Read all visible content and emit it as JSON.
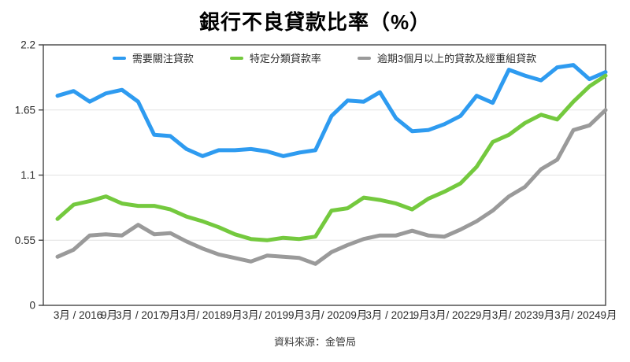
{
  "title": "銀行不良貸款比率（%）",
  "source": "資料來源：金管局",
  "colors": {
    "blue": "#2E9BF0",
    "green": "#74C93E",
    "gray": "#9A9A9A",
    "axis": "#444444",
    "grid": "#E2E2E2",
    "text": "#2B2B2B"
  },
  "chart_data": {
    "type": "line",
    "title": "銀行不良貸款比率（%）",
    "ylim": [
      0,
      2.2
    ],
    "yticks": [
      0,
      0.55,
      1.1,
      1.65,
      2.2
    ],
    "ytick_labels": [
      "0",
      "0.55",
      "1.1",
      "1.65",
      "2.2"
    ],
    "grid": "horizontal-only",
    "legend_position": "top",
    "x_note": "Quarterly data, 35 points (2016 Q1 to 2024 Q3); axis labels shown every 2nd point",
    "x_tick_labels": [
      "3月 / 2016",
      "9月",
      "3月 / 2017",
      "9月",
      "3月/ 2018",
      "9月",
      "3月/ 2019",
      "9月",
      "3月/ 2020",
      "9月",
      "3月 / 2021",
      "9月",
      "3月/ 2022",
      "9月",
      "3月/ 2023",
      "9月",
      "3月/ 2024",
      "9月"
    ],
    "x_points": [
      "2016-03",
      "2016-06",
      "2016-09",
      "2016-12",
      "2017-03",
      "2017-06",
      "2017-09",
      "2017-12",
      "2018-03",
      "2018-06",
      "2018-09",
      "2018-12",
      "2019-03",
      "2019-06",
      "2019-09",
      "2019-12",
      "2020-03",
      "2020-06",
      "2020-09",
      "2020-12",
      "2021-03",
      "2021-06",
      "2021-09",
      "2021-12",
      "2022-03",
      "2022-06",
      "2022-09",
      "2022-12",
      "2023-03",
      "2023-06",
      "2023-09",
      "2023-12",
      "2024-03",
      "2024-06",
      "2024-09"
    ],
    "series": [
      {
        "name": "需要關注貸款",
        "color": "#2E9BF0",
        "values": [
          1.77,
          1.81,
          1.72,
          1.79,
          1.82,
          1.72,
          1.44,
          1.43,
          1.32,
          1.26,
          1.31,
          1.31,
          1.32,
          1.3,
          1.26,
          1.29,
          1.31,
          1.6,
          1.73,
          1.72,
          1.8,
          1.58,
          1.47,
          1.48,
          1.53,
          1.6,
          1.77,
          1.71,
          1.99,
          1.94,
          1.9,
          2.01,
          2.03,
          1.91,
          1.97
        ]
      },
      {
        "name": "特定分類貸款率",
        "color": "#74C93E",
        "values": [
          0.73,
          0.85,
          0.88,
          0.92,
          0.86,
          0.84,
          0.84,
          0.81,
          0.75,
          0.71,
          0.66,
          0.6,
          0.56,
          0.55,
          0.57,
          0.56,
          0.58,
          0.8,
          0.82,
          0.91,
          0.89,
          0.86,
          0.81,
          0.9,
          0.96,
          1.03,
          1.17,
          1.38,
          1.44,
          1.54,
          1.61,
          1.57,
          1.72,
          1.85,
          1.94
        ]
      },
      {
        "name": "逾期3個月以上的貸款及經重組貸款",
        "color": "#9A9A9A",
        "values": [
          0.41,
          0.47,
          0.59,
          0.6,
          0.59,
          0.68,
          0.6,
          0.61,
          0.54,
          0.48,
          0.43,
          0.4,
          0.37,
          0.42,
          0.41,
          0.4,
          0.35,
          0.45,
          0.51,
          0.56,
          0.59,
          0.59,
          0.63,
          0.59,
          0.58,
          0.64,
          0.71,
          0.8,
          0.92,
          1.0,
          1.15,
          1.23,
          1.48,
          1.52,
          1.65
        ]
      }
    ]
  }
}
